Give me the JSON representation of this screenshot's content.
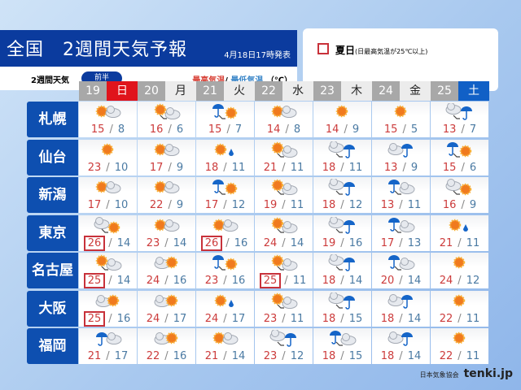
{
  "header": {
    "title": "全国　2週間天気予報",
    "issued": "4月18日17時発表",
    "subtitle": "2週間天気",
    "period": "前半",
    "high_label": "最高気温",
    "slash": "/",
    "low_label": "最低気温",
    "unit": "（℃）"
  },
  "legend": {
    "label": "夏日",
    "note": "(日最高気温が25℃以上)",
    "color": "#c8313a"
  },
  "days": [
    {
      "d": "19",
      "w": "日",
      "t": "sun"
    },
    {
      "d": "20",
      "w": "月"
    },
    {
      "d": "21",
      "w": "火"
    },
    {
      "d": "22",
      "w": "水"
    },
    {
      "d": "23",
      "w": "木"
    },
    {
      "d": "24",
      "w": "金"
    },
    {
      "d": "25",
      "w": "土",
      "t": "sat"
    }
  ],
  "rows": [
    {
      "city": "札幌",
      "cells": [
        [
          "sun-cloud",
          15,
          8
        ],
        [
          "sun-then-cloud",
          16,
          6
        ],
        [
          "rain-then-sun",
          15,
          7
        ],
        [
          "sun-cloud",
          14,
          8
        ],
        [
          "sun",
          14,
          9
        ],
        [
          "sun",
          15,
          5
        ],
        [
          "cloud-then-rain",
          13,
          7
        ]
      ]
    },
    {
      "city": "仙台",
      "cells": [
        [
          "sun",
          23,
          10
        ],
        [
          "sun-cloud",
          17,
          9
        ],
        [
          "sun-rain",
          18,
          11
        ],
        [
          "sun-then-cloud",
          21,
          11
        ],
        [
          "cloud-then-rain",
          18,
          11
        ],
        [
          "cloud-rain",
          13,
          9
        ],
        [
          "rain-then-sun",
          15,
          6
        ]
      ]
    },
    {
      "city": "新潟",
      "cells": [
        [
          "sun-cloud",
          17,
          10
        ],
        [
          "sun-cloud",
          22,
          9
        ],
        [
          "rain-then-sun",
          17,
          12
        ],
        [
          "sun-then-cloud",
          19,
          11
        ],
        [
          "cloud-then-rain",
          18,
          12
        ],
        [
          "rain-then-cloud",
          13,
          11
        ],
        [
          "cloud-then-sun",
          16,
          9
        ]
      ]
    },
    {
      "city": "東京",
      "cells": [
        [
          "cloud-then-sun",
          26,
          14
        ],
        [
          "sun-cloud",
          23,
          14
        ],
        [
          "sun-cloud",
          26,
          16
        ],
        [
          "sun-then-cloud",
          24,
          14
        ],
        [
          "cloud-then-rain",
          19,
          16
        ],
        [
          "rain-then-cloud",
          17,
          13
        ],
        [
          "sun-rain",
          21,
          11
        ]
      ]
    },
    {
      "city": "名古屋",
      "cells": [
        [
          "sun-then-cloud",
          25,
          14
        ],
        [
          "cloud-sun",
          24,
          16
        ],
        [
          "rain-then-sun",
          23,
          16
        ],
        [
          "sun-then-cloud",
          25,
          11
        ],
        [
          "cloud-then-rain",
          18,
          14
        ],
        [
          "rain-then-cloud",
          20,
          14
        ],
        [
          "sun",
          24,
          12
        ]
      ]
    },
    {
      "city": "大阪",
      "cells": [
        [
          "cloud-sun",
          25,
          16
        ],
        [
          "cloud-sun",
          24,
          17
        ],
        [
          "sun-rain",
          24,
          17
        ],
        [
          "sun-then-cloud",
          23,
          11
        ],
        [
          "cloud-then-rain",
          18,
          15
        ],
        [
          "cloud-rain",
          18,
          14
        ],
        [
          "sun",
          22,
          11
        ]
      ]
    },
    {
      "city": "福岡",
      "cells": [
        [
          "rain-cloud",
          21,
          17
        ],
        [
          "cloud-sun",
          22,
          16
        ],
        [
          "sun-cloud",
          21,
          14
        ],
        [
          "cloud-then-rain",
          23,
          12
        ],
        [
          "rain-then-cloud",
          18,
          15
        ],
        [
          "cloud-rain",
          18,
          14
        ],
        [
          "sun",
          22,
          11
        ]
      ]
    }
  ],
  "colors": {
    "title_bg": "#0b3b9e",
    "city_bg": "#0e4fb0",
    "sunday": "#e0141c",
    "saturday": "#1160c6",
    "sun": "#f07a1e",
    "rain": "#1565c8"
  },
  "credit": {
    "org": "日本気象協会",
    "brand": "tenki.jp"
  }
}
